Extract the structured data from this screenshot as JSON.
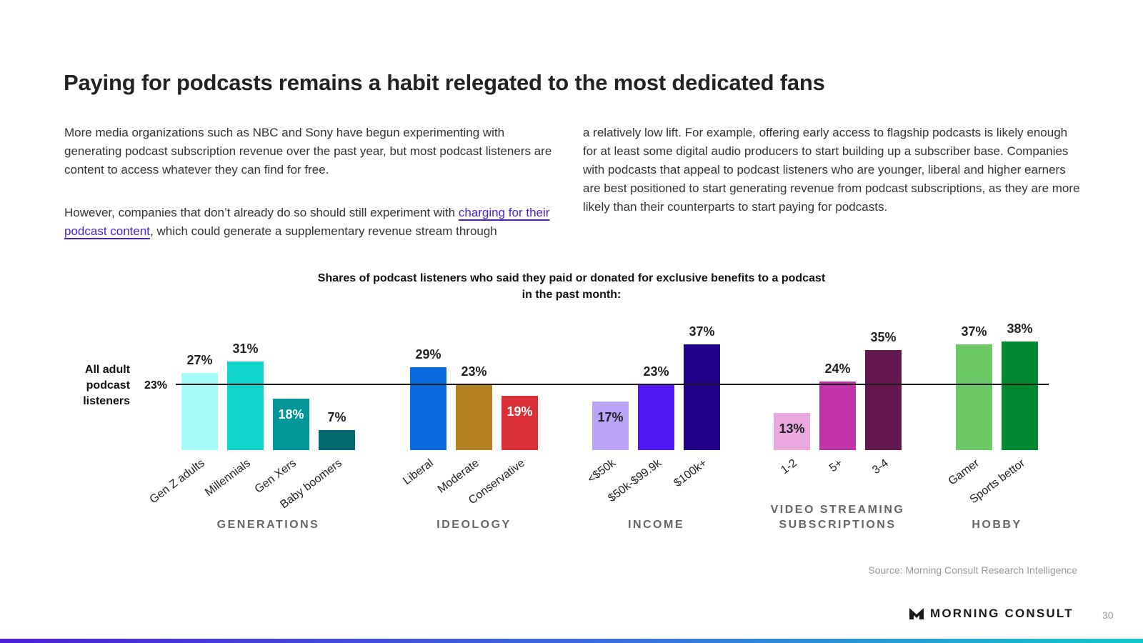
{
  "page": {
    "title": "Paying for podcasts remains a habit relegated to the most dedicated fans",
    "left_para1": "More media organizations such as NBC and Sony have begun experimenting with generating podcast subscription revenue over the past year, but most podcast listeners are content to access whatever they can find for free.",
    "left_para2_before": "However, companies that don’t already do so should still experiment with ",
    "left_para2_link": "charging for their podcast content",
    "left_para2_after": ", which could generate a supplementary revenue stream through",
    "right_para": "a relatively low lift. For example, offering early access to flagship podcasts is likely enough for at least some digital audio producers to start building up a subscriber base. Companies with podcasts that appeal to podcast listeners who are younger, liberal and higher earners are best positioned to start generating revenue from podcast subscriptions, as they are more likely than their counterparts to start paying for podcasts.",
    "source": "Source: Morning Consult Research Intelligence",
    "brand": "MORNING CONSULT",
    "page_number": "30"
  },
  "chart_data": {
    "type": "bar",
    "title": "Shares of podcast listeners who said they paid or donated for exclusive benefits to a podcast in the past month:",
    "title_line1": "Shares of podcast listeners who said they paid or donated for exclusive benefits to a podcast",
    "title_line2": "in the past month:",
    "ylim": [
      0,
      40
    ],
    "reference": {
      "label_lines": [
        "All adult",
        "podcast",
        "listeners"
      ],
      "value": 23,
      "value_label": "23%"
    },
    "groups": [
      {
        "name_lines": [
          "GENERATIONS"
        ],
        "bars": [
          {
            "label": "Gen Z adults",
            "value": 27,
            "color": "#a6fcfb",
            "label_color": "#222222",
            "label_inside": false
          },
          {
            "label": "Millennials",
            "value": 31,
            "color": "#10d5cc",
            "label_color": "#222222",
            "label_inside": false
          },
          {
            "label": "Gen Xers",
            "value": 18,
            "color": "#00969a",
            "label_color": "#ffffff",
            "label_inside": true
          },
          {
            "label": "Baby boomers",
            "value": 7,
            "color": "#006a70",
            "label_color": "#222222",
            "label_inside": false
          }
        ]
      },
      {
        "name_lines": [
          "IDEOLOGY"
        ],
        "bars": [
          {
            "label": "Liberal",
            "value": 29,
            "color": "#0a6be0",
            "label_color": "#222222",
            "label_inside": false
          },
          {
            "label": "Moderate",
            "value": 23,
            "color": "#b3801f",
            "label_color": "#222222",
            "label_inside": false
          },
          {
            "label": "Conservative",
            "value": 19,
            "color": "#d92f35",
            "label_color": "#ffffff",
            "label_inside": true
          }
        ]
      },
      {
        "name_lines": [
          "INCOME"
        ],
        "bars": [
          {
            "label": "<$50k",
            "value": 17,
            "color": "#b9a4f7",
            "label_color": "#222222",
            "label_inside": true
          },
          {
            "label": "$50k-$99.9k",
            "value": 23,
            "color": "#5018f2",
            "label_color": "#222222",
            "label_inside": false
          },
          {
            "label": "$100k+",
            "value": 37,
            "color": "#22028a",
            "label_color": "#222222",
            "label_inside": false
          }
        ]
      },
      {
        "name_lines": [
          "VIDEO STREAMING",
          "SUBSCRIPTIONS"
        ],
        "bars": [
          {
            "label": "1-2",
            "value": 13,
            "color": "#eaa7e0",
            "label_color": "#222222",
            "label_inside": true
          },
          {
            "label": "5+",
            "value": 24,
            "color": "#c233a8",
            "label_color": "#222222",
            "label_inside": false
          },
          {
            "label": "3-4",
            "value": 35,
            "color": "#62174f",
            "label_color": "#222222",
            "label_inside": false
          }
        ]
      },
      {
        "name_lines": [
          "HOBBY"
        ],
        "bars": [
          {
            "label": "Gamer",
            "value": 37,
            "color": "#6dc967",
            "label_color": "#222222",
            "label_inside": false
          },
          {
            "label": "Sports bettor",
            "value": 38,
            "color": "#02882e",
            "label_color": "#222222",
            "label_inside": false
          }
        ]
      }
    ]
  }
}
